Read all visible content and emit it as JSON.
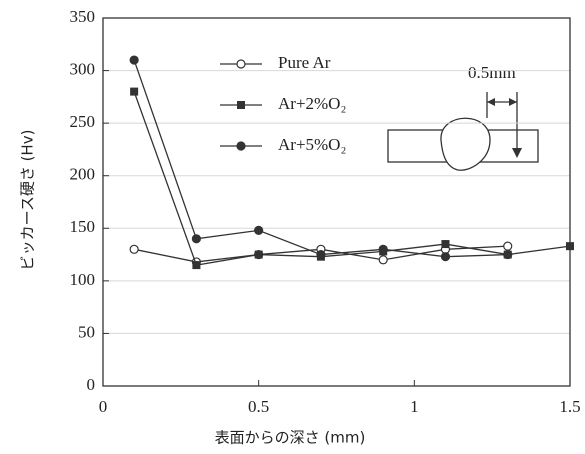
{
  "chart_data": {
    "type": "line",
    "x": [
      0.1,
      0.3,
      0.5,
      0.7,
      0.9,
      1.1,
      1.3,
      1.5
    ],
    "series": [
      {
        "name": "Pure Ar",
        "color": "#333333",
        "marker": "open-circle",
        "values": [
          130,
          118,
          125,
          130,
          120,
          130,
          133,
          null
        ]
      },
      {
        "name": "Ar+2%O₂",
        "color": "#333333",
        "marker": "square",
        "values": [
          280,
          115,
          125,
          123,
          128,
          135,
          125,
          133
        ]
      },
      {
        "name": "Ar+5%O₂",
        "color": "#333333",
        "marker": "circle",
        "values": [
          310,
          140,
          148,
          125,
          130,
          123,
          125,
          null
        ]
      }
    ],
    "xlim": [
      0,
      1.5
    ],
    "xticks": [
      0,
      0.5,
      1,
      1.5
    ],
    "ylim": [
      0,
      350
    ],
    "yticks": [
      0,
      50,
      100,
      150,
      200,
      250,
      300,
      350
    ],
    "xlabel": "表面からの深さ (mm)",
    "ylabel": "ビッカース硬さ (Hv)",
    "annotation": "0.5mm",
    "grid": true
  }
}
